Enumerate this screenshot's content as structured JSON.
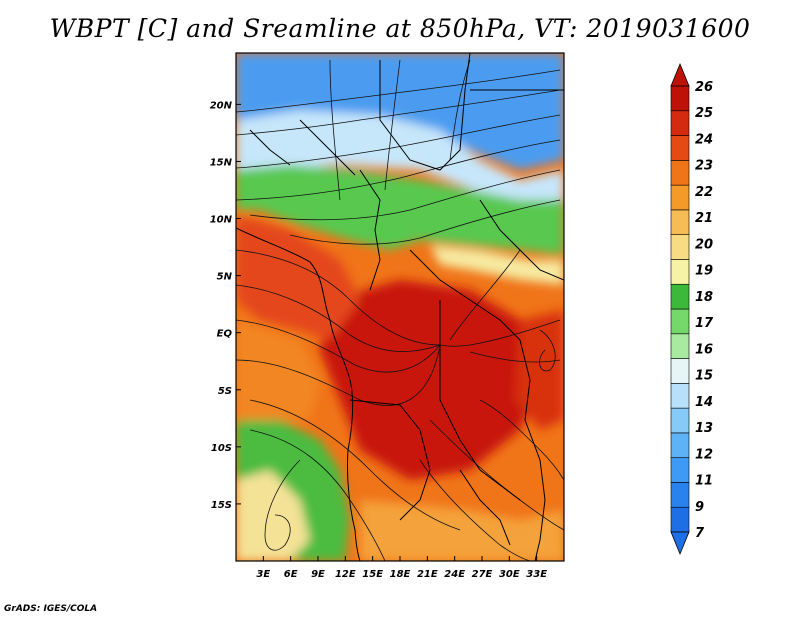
{
  "title": "WBPT [C] and Sreamline at 850hPa, VT: 2019031600",
  "credit": "GrADS: IGES/COLA",
  "map": {
    "lon_range": [
      0,
      36
    ],
    "lat_range": [
      -20,
      24.5
    ],
    "lon_ticks": [
      "3E",
      "6E",
      "9E",
      "12E",
      "15E",
      "18E",
      "21E",
      "24E",
      "27E",
      "30E",
      "33E"
    ],
    "lon_tick_values": [
      3,
      6,
      9,
      12,
      15,
      18,
      21,
      24,
      27,
      30,
      33
    ],
    "lat_ticks": [
      "20N",
      "15N",
      "10N",
      "5N",
      "EQ",
      "5S",
      "10S",
      "15S"
    ],
    "lat_tick_values": [
      20,
      15,
      10,
      5,
      0,
      -5,
      -10,
      -15
    ]
  },
  "colorbar": {
    "labels": [
      "7",
      "9",
      "11",
      "12",
      "13",
      "14",
      "15",
      "16",
      "17",
      "18",
      "19",
      "20",
      "21",
      "22",
      "23",
      "24",
      "25",
      "26"
    ],
    "colors": [
      "#1e6ee6",
      "#2a82ee",
      "#3e9af4",
      "#5eb2f6",
      "#86caf8",
      "#b8e0fa",
      "#e6f6f6",
      "#a8eaa0",
      "#74d86a",
      "#3cb83a",
      "#f6f2a6",
      "#f8dc84",
      "#f6bc56",
      "#f49a28",
      "#f07418",
      "#e64a14",
      "#d42a10",
      "#be1208"
    ]
  }
}
